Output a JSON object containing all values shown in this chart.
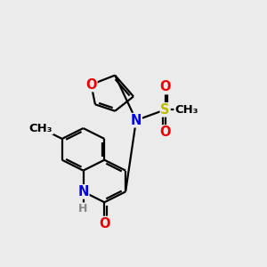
{
  "background_color": "#ebebeb",
  "atom_colors": {
    "C": "#000000",
    "N": "#0000ee",
    "O": "#ee0000",
    "S": "#bbbb00",
    "H": "#888888"
  },
  "bond_lw": 1.6,
  "font_size": 10.5
}
